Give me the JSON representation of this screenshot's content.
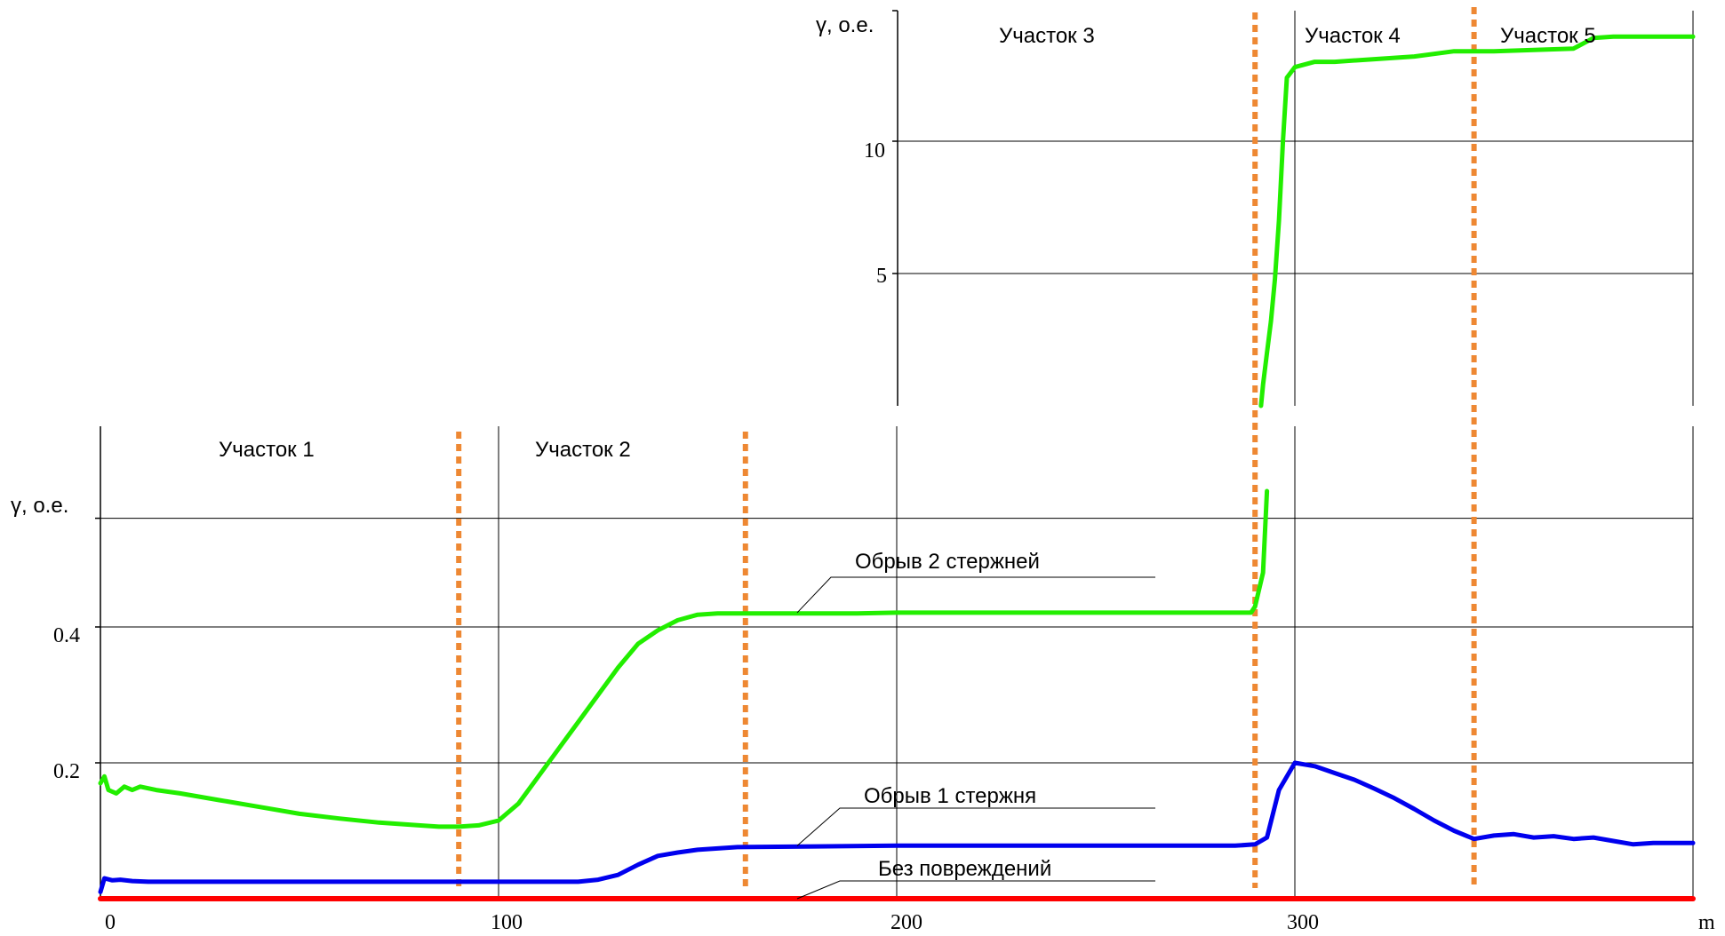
{
  "chart_data": [
    {
      "type": "line",
      "panel": "lower",
      "ylabel": "γ, о.е.",
      "xlabel": "m",
      "xlim": [
        0,
        400
      ],
      "ylim": [
        0,
        0.6
      ],
      "x_ticks": [
        0,
        100,
        200,
        300
      ],
      "y_ticks": [
        0.2,
        0.4
      ],
      "grid": true,
      "sections": [
        "Участок 1",
        "Участок 2"
      ],
      "section_boundaries": [
        90,
        162,
        290,
        345
      ],
      "series": [
        {
          "name": "Обрыв 2 стержней",
          "color": "#22ee00",
          "points": [
            [
              0,
              0.17
            ],
            [
              1,
              0.18
            ],
            [
              2,
              0.16
            ],
            [
              4,
              0.155
            ],
            [
              6,
              0.165
            ],
            [
              8,
              0.16
            ],
            [
              10,
              0.165
            ],
            [
              14,
              0.16
            ],
            [
              20,
              0.155
            ],
            [
              30,
              0.145
            ],
            [
              40,
              0.135
            ],
            [
              50,
              0.125
            ],
            [
              60,
              0.118
            ],
            [
              70,
              0.112
            ],
            [
              80,
              0.108
            ],
            [
              85,
              0.106
            ],
            [
              90,
              0.106
            ],
            [
              95,
              0.108
            ],
            [
              100,
              0.115
            ],
            [
              105,
              0.14
            ],
            [
              110,
              0.18
            ],
            [
              115,
              0.22
            ],
            [
              120,
              0.26
            ],
            [
              125,
              0.3
            ],
            [
              130,
              0.34
            ],
            [
              135,
              0.375
            ],
            [
              140,
              0.395
            ],
            [
              145,
              0.41
            ],
            [
              150,
              0.418
            ],
            [
              155,
              0.42
            ],
            [
              160,
              0.42
            ],
            [
              170,
              0.42
            ],
            [
              190,
              0.42
            ],
            [
              200,
              0.421
            ],
            [
              250,
              0.421
            ],
            [
              289,
              0.421
            ],
            [
              290,
              0.43
            ],
            [
              292,
              0.48
            ],
            [
              293,
              0.6
            ]
          ]
        },
        {
          "name": "Обрыв 1 стержня",
          "color": "#0000ee",
          "points": [
            [
              0,
              0.01
            ],
            [
              1,
              0.03
            ],
            [
              3,
              0.027
            ],
            [
              5,
              0.028
            ],
            [
              8,
              0.026
            ],
            [
              12,
              0.025
            ],
            [
              30,
              0.025
            ],
            [
              90,
              0.025
            ],
            [
              120,
              0.025
            ],
            [
              125,
              0.028
            ],
            [
              130,
              0.035
            ],
            [
              135,
              0.05
            ],
            [
              140,
              0.063
            ],
            [
              145,
              0.068
            ],
            [
              150,
              0.072
            ],
            [
              155,
              0.074
            ],
            [
              160,
              0.076
            ],
            [
              180,
              0.077
            ],
            [
              200,
              0.078
            ],
            [
              260,
              0.078
            ],
            [
              285,
              0.078
            ],
            [
              290,
              0.08
            ],
            [
              293,
              0.09
            ],
            [
              296,
              0.16
            ],
            [
              300,
              0.2
            ],
            [
              305,
              0.195
            ],
            [
              310,
              0.185
            ],
            [
              315,
              0.175
            ],
            [
              320,
              0.162
            ],
            [
              325,
              0.148
            ],
            [
              330,
              0.132
            ],
            [
              335,
              0.115
            ],
            [
              340,
              0.1
            ],
            [
              345,
              0.088
            ],
            [
              350,
              0.093
            ],
            [
              355,
              0.095
            ],
            [
              360,
              0.09
            ],
            [
              365,
              0.092
            ],
            [
              370,
              0.088
            ],
            [
              375,
              0.09
            ],
            [
              380,
              0.085
            ],
            [
              385,
              0.08
            ],
            [
              390,
              0.082
            ],
            [
              400,
              0.082
            ]
          ]
        },
        {
          "name": "Без повреждений",
          "color": "#ff0000",
          "points": [
            [
              0,
              0
            ],
            [
              400,
              0
            ]
          ]
        }
      ]
    },
    {
      "type": "line",
      "panel": "upper",
      "ylabel": "γ, о.е.",
      "xlim": [
        200,
        400
      ],
      "ylim": [
        0,
        15
      ],
      "y_ticks": [
        5,
        10
      ],
      "grid": true,
      "sections": [
        "Участок 3",
        "Участок 4",
        "Участок 5"
      ],
      "series": [
        {
          "name": "Обрыв 2 стержней",
          "color": "#22ee00",
          "points": [
            [
              291.5,
              0
            ],
            [
              292,
              0.8
            ],
            [
              293,
              2.0
            ],
            [
              294,
              3.2
            ],
            [
              295,
              4.8
            ],
            [
              296,
              7
            ],
            [
              297,
              10
            ],
            [
              298,
              12.4
            ],
            [
              300,
              12.8
            ],
            [
              305,
              13.0
            ],
            [
              310,
              13.0
            ],
            [
              320,
              13.1
            ],
            [
              330,
              13.2
            ],
            [
              340,
              13.4
            ],
            [
              350,
              13.4
            ],
            [
              360,
              13.45
            ],
            [
              370,
              13.5
            ],
            [
              375,
              13.9
            ],
            [
              380,
              13.95
            ],
            [
              400,
              13.95
            ]
          ]
        }
      ]
    }
  ],
  "labels": {
    "series_lower_1": "Обрыв 2 стержней",
    "series_lower_2": "Обрыв 1 стержня",
    "series_lower_3": "Без повреждений",
    "section_1": "Участок 1",
    "section_2": "Участок 2",
    "section_3": "Участок 3",
    "section_4": "Участок 4",
    "section_5": "Участок 5",
    "ylabel_lower": "γ, о.е.",
    "ylabel_upper": "γ, о.е.",
    "xlabel": "m",
    "xtick_0": "0",
    "xtick_100": "100",
    "xtick_200": "200",
    "xtick_300": "300",
    "ytick_02": "0.2",
    "ytick_04": "0.4",
    "ytick_5": "5",
    "ytick_10": "10"
  },
  "colors": {
    "boundary": "#ee8833",
    "grid": "#000000"
  }
}
